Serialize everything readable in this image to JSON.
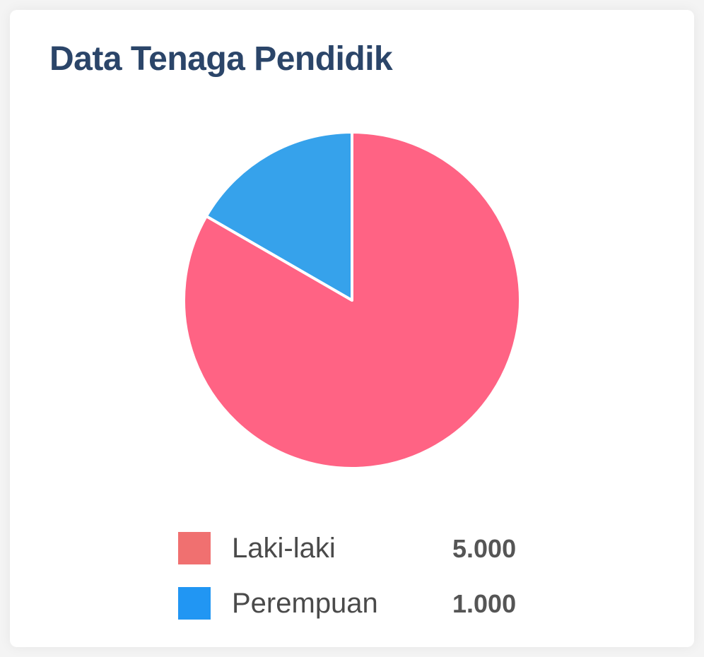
{
  "card": {
    "title": "Data Tenaga Pendidik"
  },
  "chart_data": {
    "type": "pie",
    "title": "Data Tenaga Pendidik",
    "categories": [
      "Laki-laki",
      "Perempuan"
    ],
    "values": [
      5000,
      1000
    ],
    "value_labels": [
      "5.000",
      "1.000"
    ],
    "slice_colors": [
      "#ff6384",
      "#36a2eb"
    ],
    "legend_colors": [
      "#f07070",
      "#2196f3"
    ],
    "slice_border_color": "#ffffff",
    "legend": "bottom",
    "start_angle_deg": -90,
    "direction": "clockwise"
  }
}
